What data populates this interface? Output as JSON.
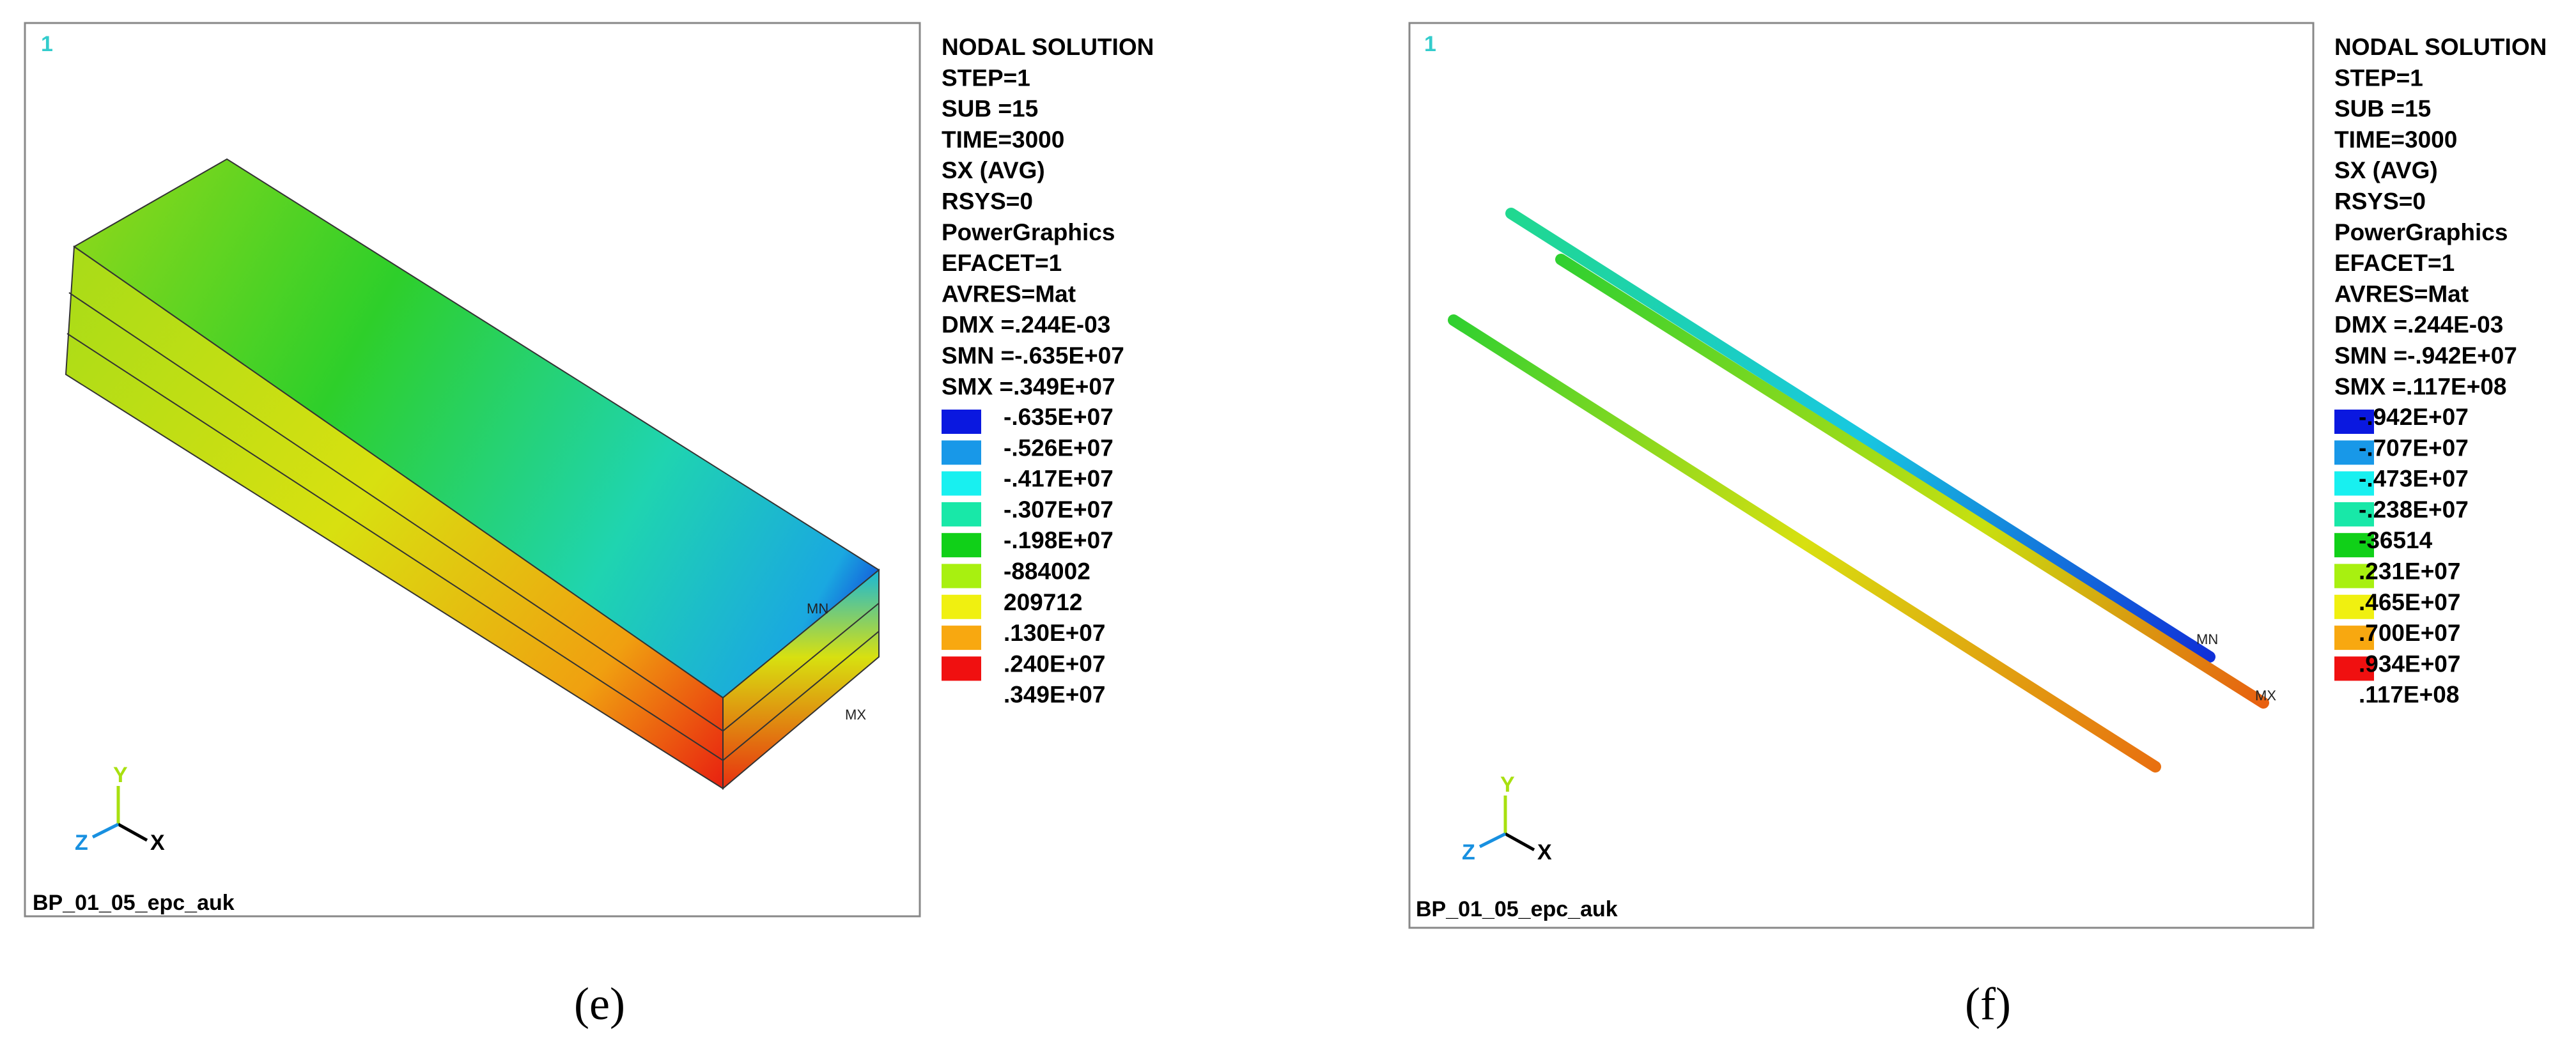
{
  "panels": [
    {
      "window_number": "1",
      "info": [
        "NODAL SOLUTION",
        "STEP=1",
        "SUB =15",
        "TIME=3000",
        "SX       (AVG)",
        "RSYS=0",
        "PowerGraphics",
        "EFACET=1",
        "AVRES=Mat",
        "DMX =.244E-03",
        "SMN =-.635E+07",
        "SMX =.349E+07"
      ],
      "levels": [
        "-.635E+07",
        "-.526E+07",
        "-.417E+07",
        "-.307E+07",
        "-.198E+07",
        "-884002",
        "209712",
        ".130E+07",
        ".240E+07",
        ".349E+07"
      ],
      "min_label": "MN",
      "max_label": "MX",
      "axes": {
        "x": "X",
        "y": "Y",
        "z": "Z"
      },
      "footer": "BP_01_05_epc_auk",
      "caption": "(e)"
    },
    {
      "window_number": "1",
      "info": [
        "NODAL SOLUTION",
        "STEP=1",
        "SUB =15",
        "TIME=3000",
        "SX       (AVG)",
        "RSYS=0",
        "PowerGraphics",
        "EFACET=1",
        "AVRES=Mat",
        "DMX =.244E-03",
        "SMN =-.942E+07",
        "SMX =.117E+08"
      ],
      "levels": [
        "-.942E+07",
        "-.707E+07",
        "-.473E+07",
        "-.238E+07",
        "-36514",
        ".231E+07",
        ".465E+07",
        ".700E+07",
        ".934E+07",
        ".117E+08"
      ],
      "min_label": "MN",
      "max_label": "MX",
      "axes": {
        "x": "X",
        "y": "Y",
        "z": "Z"
      },
      "footer": "BP_01_05_epc_auk",
      "caption": "(f)"
    }
  ]
}
